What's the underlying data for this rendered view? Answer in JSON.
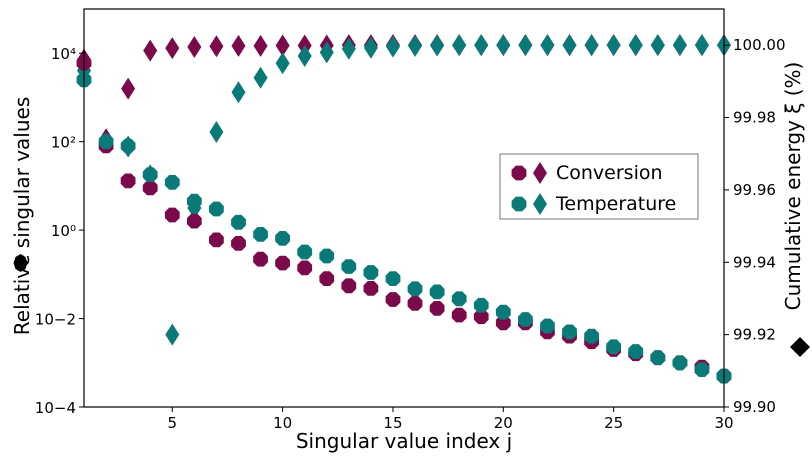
{
  "chart_data": {
    "type": "scatter",
    "xlabel": "Singular value index j",
    "ylabel_left": "Relative singular values",
    "ylabel_right": "Cumulative energy ξ (%)",
    "xlim": [
      1,
      30
    ],
    "ylim_left_log10": [
      -4,
      5
    ],
    "ylim_right": [
      99.9,
      100.01
    ],
    "left_scale": "log",
    "grid": false,
    "legend_placement": "center-right",
    "x_ticks": [
      5,
      10,
      15,
      20,
      25,
      30
    ],
    "y_ticks_left": [
      {
        "exp": -4,
        "label": "10−4"
      },
      {
        "exp": -2,
        "label": "10−2"
      },
      {
        "exp": 0,
        "label": "10⁰"
      },
      {
        "exp": 2,
        "label": "10²"
      },
      {
        "exp": 4,
        "label": "10⁴"
      }
    ],
    "y_ticks_right": [
      {
        "value": 99.9,
        "label": "99.90"
      },
      {
        "value": 99.92,
        "label": "99.92"
      },
      {
        "value": 99.94,
        "label": "99.94"
      },
      {
        "value": 99.96,
        "label": "99.96"
      },
      {
        "value": 99.98,
        "label": "99.98"
      },
      {
        "value": 100.0,
        "label": "100.00"
      }
    ],
    "x": [
      1,
      2,
      3,
      4,
      5,
      6,
      7,
      8,
      9,
      10,
      11,
      12,
      13,
      14,
      15,
      16,
      17,
      18,
      19,
      20,
      21,
      22,
      23,
      24,
      25,
      26,
      27,
      28,
      29,
      30
    ],
    "series": [
      {
        "name": "Conversion",
        "color": "#7a0a4a",
        "singular_values": [
          6000,
          80,
          13,
          9,
          2.2,
          1.6,
          0.6,
          0.5,
          0.22,
          0.18,
          0.14,
          0.08,
          0.055,
          0.048,
          0.027,
          0.022,
          0.017,
          0.012,
          0.011,
          0.008,
          0.008,
          0.005,
          0.004,
          0.003,
          0.002,
          0.0016,
          0.0013,
          0.001,
          0.0008,
          0.0005
        ],
        "cumulative_energy": [
          99.996,
          99.974,
          99.988,
          99.9985,
          99.9992,
          99.9995,
          99.9997,
          99.9998,
          99.9998,
          99.9999,
          99.9999,
          99.9999,
          100.0,
          100.0,
          100.0,
          100.0,
          100.0,
          100.0,
          100.0,
          100.0,
          100.0,
          100.0,
          100.0,
          100.0,
          100.0,
          100.0,
          100.0,
          100.0,
          100.0,
          100.0
        ]
      },
      {
        "name": "Temperature",
        "color": "#0a7a78",
        "singular_values": [
          2500,
          100,
          80,
          18,
          12,
          4.5,
          3,
          1.5,
          0.8,
          0.65,
          0.32,
          0.26,
          0.15,
          0.11,
          0.08,
          0.047,
          0.04,
          0.028,
          0.02,
          0.014,
          0.0095,
          0.0068,
          0.005,
          0.004,
          0.0023,
          0.0018,
          0.0013,
          0.001,
          0.0007,
          0.0005
        ],
        "cumulative_energy": [
          99.993,
          99.973,
          99.972,
          99.964,
          99.92,
          99.955,
          99.976,
          99.987,
          99.991,
          99.995,
          99.997,
          99.998,
          99.999,
          99.9993,
          99.9996,
          99.9998,
          99.9999,
          100.0,
          100.0,
          100.0,
          100.0,
          100.0,
          100.0,
          100.0,
          100.0,
          100.0,
          100.0,
          100.0,
          100.0,
          100.0
        ]
      }
    ]
  }
}
